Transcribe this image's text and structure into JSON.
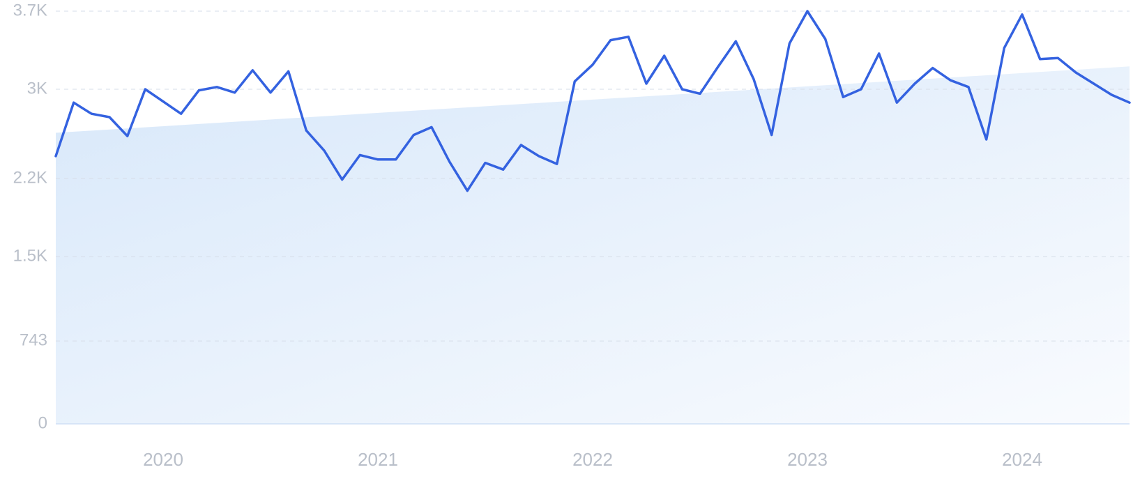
{
  "chart_data": {
    "type": "line",
    "title": "",
    "xlabel": "",
    "ylabel": "",
    "ylim": [
      0,
      3700
    ],
    "xlim": [
      "2019-07",
      "2024-07"
    ],
    "y_ticks": [
      {
        "value": 0,
        "label": "0"
      },
      {
        "value": 743,
        "label": "743"
      },
      {
        "value": 1500,
        "label": "1.5K"
      },
      {
        "value": 2200,
        "label": "2.2K"
      },
      {
        "value": 3000,
        "label": "3K"
      },
      {
        "value": 3700,
        "label": "3.7K"
      }
    ],
    "x_ticks": [
      {
        "value": "2020-01",
        "label": "2020"
      },
      {
        "value": "2021-01",
        "label": "2021"
      },
      {
        "value": "2022-01",
        "label": "2022"
      },
      {
        "value": "2023-01",
        "label": "2023"
      },
      {
        "value": "2024-01",
        "label": "2024"
      }
    ],
    "grid": true,
    "legend": "none",
    "colors": {
      "line": "#3462e0",
      "area_start": "#d8e8fa",
      "area_end": "#f9fbfe",
      "grid": "#d6dde8",
      "tick_text": "#b9bfc9"
    },
    "series": [
      {
        "x": [
          "2019-07",
          "2019-08",
          "2019-09",
          "2019-10",
          "2019-11",
          "2019-12",
          "2020-01",
          "2020-02",
          "2020-03",
          "2020-04",
          "2020-05",
          "2020-06",
          "2020-07",
          "2020-08",
          "2020-09",
          "2020-10",
          "2020-11",
          "2020-12",
          "2021-01",
          "2021-02",
          "2021-03",
          "2021-04",
          "2021-05",
          "2021-06",
          "2021-07",
          "2021-08",
          "2021-09",
          "2021-10",
          "2021-11",
          "2021-12",
          "2022-01",
          "2022-02",
          "2022-03",
          "2022-04",
          "2022-05",
          "2022-06",
          "2022-07",
          "2022-08",
          "2022-09",
          "2022-10",
          "2022-11",
          "2022-12",
          "2023-01",
          "2023-02",
          "2023-03",
          "2023-04",
          "2023-05",
          "2023-06",
          "2023-07",
          "2023-08",
          "2023-09",
          "2023-10",
          "2023-11",
          "2023-12",
          "2024-01",
          "2024-02",
          "2024-03",
          "2024-04",
          "2024-05",
          "2024-06",
          "2024-07"
        ],
        "values": [
          2400,
          2880,
          2780,
          2750,
          2580,
          3000,
          2890,
          2780,
          2990,
          3020,
          2970,
          3170,
          2970,
          3160,
          2630,
          2450,
          2190,
          2410,
          2370,
          2370,
          2590,
          2660,
          2350,
          2090,
          2340,
          2280,
          2500,
          2400,
          2330,
          3070,
          3220,
          3440,
          3470,
          3050,
          3300,
          3000,
          2960,
          3200,
          3430,
          3090,
          2590,
          3410,
          3700,
          3450,
          2930,
          3000,
          3320,
          2880,
          3050,
          3190,
          3080,
          3020,
          2550,
          3370,
          3670,
          3270,
          3280,
          3150,
          3050,
          2950,
          2880
        ]
      }
    ]
  }
}
